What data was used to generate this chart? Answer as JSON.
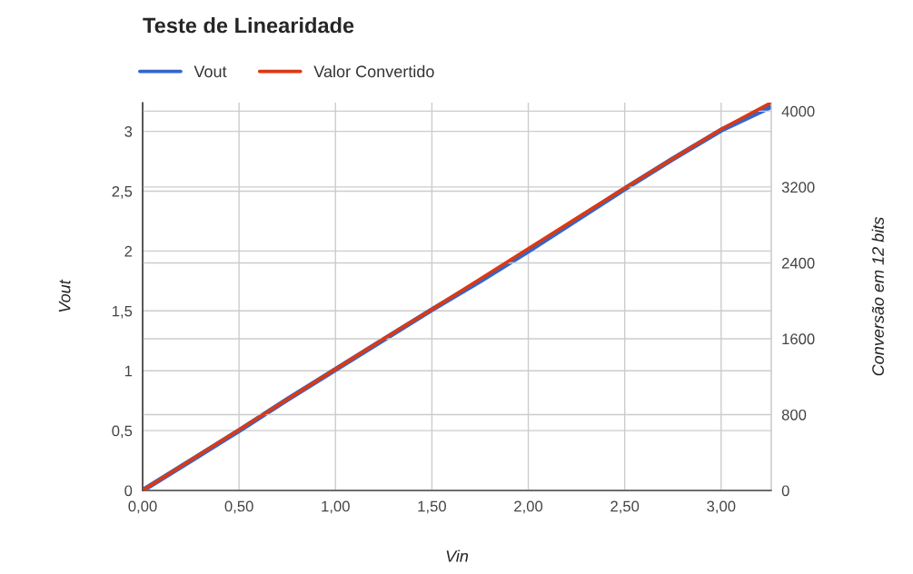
{
  "chart_data": {
    "type": "line",
    "title": "Teste de Linearidade",
    "xlabel": "Vin",
    "ylabel": "Vout",
    "y2label": "Conversão em 12 bits",
    "x": [
      0,
      0.25,
      0.5,
      0.75,
      1.0,
      1.25,
      1.5,
      1.75,
      2.0,
      2.25,
      2.5,
      2.75,
      3.0,
      3.25
    ],
    "series": [
      {
        "name": "Vout",
        "color": "#3366cc",
        "values": [
          0,
          0.25,
          0.5,
          0.76,
          1.01,
          1.26,
          1.51,
          1.75,
          2.0,
          2.26,
          2.52,
          2.77,
          3.01,
          3.2
        ]
      },
      {
        "name": "Valor Convertido",
        "color": "#dc3912",
        "axis": "y2",
        "values": [
          0,
          320,
          640,
          960,
          1280,
          1600,
          1910,
          2230,
          2550,
          2870,
          3190,
          3500,
          3810,
          4080
        ]
      }
    ],
    "xlim": [
      0,
      3.26
    ],
    "xticks": [
      {
        "value": 0,
        "label": "0,00"
      },
      {
        "value": 0.5,
        "label": "0,50"
      },
      {
        "value": 1,
        "label": "1,00"
      },
      {
        "value": 1.5,
        "label": "1,50"
      },
      {
        "value": 2,
        "label": "2,00"
      },
      {
        "value": 2.5,
        "label": "2,50"
      },
      {
        "value": 3,
        "label": "3,00"
      }
    ],
    "ylim": [
      0,
      3.24
    ],
    "yticks": [
      0,
      {
        "value": 0.5,
        "label": "0,5"
      },
      1,
      {
        "value": 1.5,
        "label": "1,5"
      },
      2,
      {
        "value": 2.5,
        "label": "2,5"
      },
      3
    ],
    "y2lim": [
      0,
      4090
    ],
    "y2ticks": [
      0,
      800,
      1600,
      2400,
      3200,
      4000
    ],
    "grid": true,
    "legend": "top left",
    "marker": "none",
    "line_style": "solid"
  }
}
